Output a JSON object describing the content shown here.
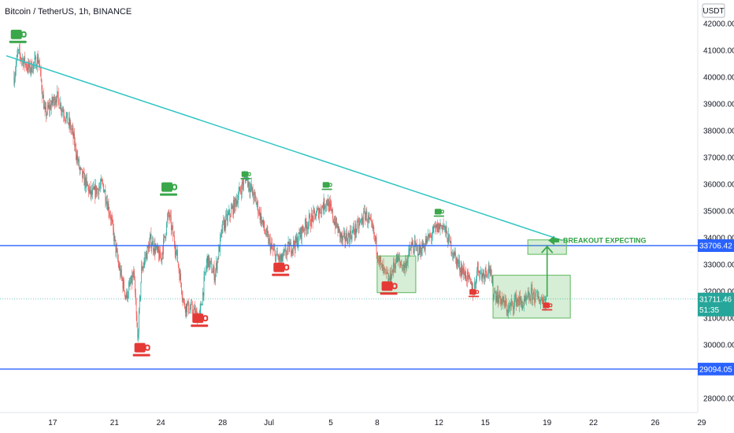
{
  "header": {
    "symbol": "Bitcoin / TetherUS",
    "interval": "1h",
    "exchange": "BINANCE",
    "title_text": "Bitcoin / TetherUS, 1h, BINANCE"
  },
  "currency_label": "USDT",
  "colors": {
    "up": "#26a69a",
    "down": "#ef5350",
    "level_line": "#2962ff",
    "trendline": "#2ec4c4",
    "marker_green": "#3aa74a",
    "marker_red": "#e53935",
    "box": "#5cb85c",
    "price_tag": "#26a69a"
  },
  "chart_data": {
    "type": "candlestick",
    "title": "Bitcoin / TetherUS, 1h, BINANCE",
    "x_ticks": [
      "17",
      "21",
      "24",
      "28",
      "Jul",
      "5",
      "8",
      "12",
      "15",
      "19",
      "22",
      "26",
      "29"
    ],
    "y_ticks": [
      "28000.00",
      "29000.00",
      "30000.00",
      "31000.00",
      "32000.00",
      "33000.00",
      "34000.00",
      "35000.00",
      "36000.00",
      "37000.00",
      "38000.00",
      "39000.00",
      "40000.00",
      "41000.00",
      "42000.00"
    ],
    "ylim": [
      27800,
      42300
    ],
    "price_path": [
      [
        "Jun 14 12:00",
        40000
      ],
      [
        "Jun 14 18:00",
        40900
      ],
      [
        "Jun 15 12:00",
        40300
      ],
      [
        "Jun 16 02:00",
        40700
      ],
      [
        "Jun 16 12:00",
        38600
      ],
      [
        "Jun 17 06:00",
        39300
      ],
      [
        "Jun 18 06:00",
        38000
      ],
      [
        "Jun 18 18:00",
        36500
      ],
      [
        "Jun 19 12:00",
        35600
      ],
      [
        "Jun 20 06:00",
        36000
      ],
      [
        "Jun 20 18:00",
        34800
      ],
      [
        "Jun 21 06:00",
        33000
      ],
      [
        "Jun 21 18:00",
        31800
      ],
      [
        "Jun 22 06:00",
        32600
      ],
      [
        "Jun 22 12:00",
        30200
      ],
      [
        "Jun 22 18:00",
        32800
      ],
      [
        "Jun 23 08:00",
        33900
      ],
      [
        "Jun 24 00:00",
        33200
      ],
      [
        "Jun 24 12:00",
        34900
      ],
      [
        "Jun 25 00:00",
        33500
      ],
      [
        "Jun 25 12:00",
        31500
      ],
      [
        "Jun 26 00:00",
        31300
      ],
      [
        "Jun 26 12:00",
        31000
      ],
      [
        "Jun 27 00:00",
        33200
      ],
      [
        "Jun 27 12:00",
        32600
      ],
      [
        "Jun 28 00:00",
        34400
      ],
      [
        "Jun 28 18:00",
        35200
      ],
      [
        "Jun 29 12:00",
        36300
      ],
      [
        "Jun 30 06:00",
        35200
      ],
      [
        "Jun 30 18:00",
        34200
      ],
      [
        "Jul 01 06:00",
        33500
      ],
      [
        "Jul 01 18:00",
        33100
      ],
      [
        "Jul 02 06:00",
        33600
      ],
      [
        "Jul 02 18:00",
        33800
      ],
      [
        "Jul 03 06:00",
        34400
      ],
      [
        "Jul 03 18:00",
        34700
      ],
      [
        "Jul 04 06:00",
        35000
      ],
      [
        "Jul 04 18:00",
        35400
      ],
      [
        "Jul 05 06:00",
        34600
      ],
      [
        "Jul 05 18:00",
        33900
      ],
      [
        "Jul 06 06:00",
        34100
      ],
      [
        "Jul 06 18:00",
        34400
      ],
      [
        "Jul 07 06:00",
        34900
      ],
      [
        "Jul 07 18:00",
        34200
      ],
      [
        "Jul 08 06:00",
        32900
      ],
      [
        "Jul 08 18:00",
        32400
      ],
      [
        "Jul 09 06:00",
        33200
      ],
      [
        "Jul 09 18:00",
        32900
      ],
      [
        "Jul 10 06:00",
        33700
      ],
      [
        "Jul 10 18:00",
        33500
      ],
      [
        "Jul 11 06:00",
        33900
      ],
      [
        "Jul 11 18:00",
        34300
      ],
      [
        "Jul 12 06:00",
        34500
      ],
      [
        "Jul 12 18:00",
        33700
      ],
      [
        "Jul 13 06:00",
        33000
      ],
      [
        "Jul 13 18:00",
        32600
      ],
      [
        "Jul 14 06:00",
        32000
      ],
      [
        "Jul 14 12:00",
        32900
      ],
      [
        "Jul 14 18:00",
        32600
      ],
      [
        "Jul 15 06:00",
        32900
      ],
      [
        "Jul 15 12:00",
        32000
      ],
      [
        "Jul 16 00:00",
        31700
      ],
      [
        "Jul 16 12:00",
        31300
      ],
      [
        "Jul 17 00:00",
        31700
      ],
      [
        "Jul 17 12:00",
        31500
      ],
      [
        "Jul 18 00:00",
        31900
      ],
      [
        "Jul 18 12:00",
        31700
      ],
      [
        "Jul 19 00:00",
        31711
      ]
    ],
    "levels": [
      {
        "price": 33706.42,
        "label": "33706.42"
      },
      {
        "price": 29094.05,
        "label": "29094.05"
      }
    ],
    "current_price": {
      "price": 31711.46,
      "label": "31711.46",
      "countdown": "51:35"
    },
    "trendline": [
      [
        "Jun 14 00:00",
        40800
      ],
      [
        "Jul 20 00:00",
        33900
      ]
    ],
    "annotations": {
      "breakout_text": "BREAKOUT EXPECTING"
    },
    "cup_markers": [
      {
        "t": "Jun 14 18:00",
        "price": 41300,
        "color": "green",
        "size": "large"
      },
      {
        "t": "Jun 24 12:00",
        "price": 35600,
        "color": "green",
        "size": "large"
      },
      {
        "t": "Jun 29 12:00",
        "price": 36200,
        "color": "green",
        "size": "small"
      },
      {
        "t": "Jul 04 18:00",
        "price": 35800,
        "color": "green",
        "size": "small"
      },
      {
        "t": "Jul 12 00:00",
        "price": 34800,
        "color": "green",
        "size": "small"
      },
      {
        "t": "Jun 22 18:00",
        "price": 29600,
        "color": "red",
        "size": "large"
      },
      {
        "t": "Jun 26 12:00",
        "price": 30700,
        "color": "red",
        "size": "large"
      },
      {
        "t": "Jul 01 18:00",
        "price": 32600,
        "color": "red",
        "size": "large"
      },
      {
        "t": "Jul 08 18:00",
        "price": 31900,
        "color": "red",
        "size": "large"
      },
      {
        "t": "Jul 14 06:00",
        "price": 31800,
        "color": "red",
        "size": "small"
      },
      {
        "t": "Jul 19 00:00",
        "price": 31300,
        "color": "red",
        "size": "small"
      }
    ],
    "boxes": [
      {
        "t0": "Jul 08 00:00",
        "t1": "Jul 10 12:00",
        "p0": 31950,
        "p1": 33320
      },
      {
        "t0": "Jul 15 12:00",
        "t1": "Jul 20 12:00",
        "p0": 31000,
        "p1": 32600
      },
      {
        "t0": "Jul 17 18:00",
        "t1": "Jul 20 06:00",
        "p0": 33380,
        "p1": 33920
      }
    ],
    "arrow_up": {
      "t": "Jul 19 00:00",
      "from": 31800,
      "to": 33700
    }
  }
}
